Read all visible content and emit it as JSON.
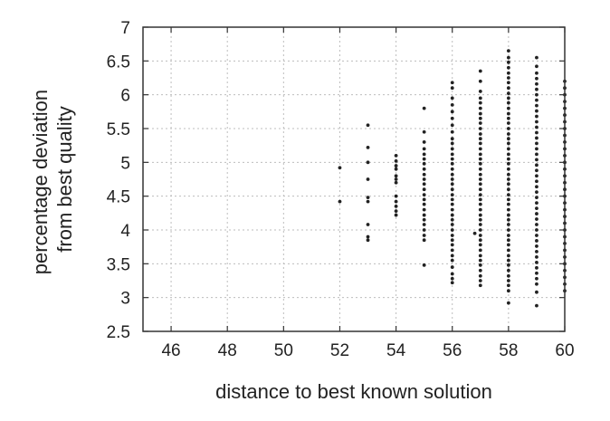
{
  "chart_data": {
    "type": "scatter",
    "title": "",
    "xlabel": "distance to best known solution",
    "ylabel_lines": [
      "percentage deviation",
      "from best quality"
    ],
    "xlim": [
      45,
      60
    ],
    "ylim": [
      2.5,
      7
    ],
    "x_ticks": [
      46,
      48,
      50,
      52,
      54,
      56,
      58,
      60
    ],
    "y_ticks": [
      2.5,
      3,
      3.5,
      4,
      4.5,
      5,
      5.5,
      6,
      6.5,
      7
    ],
    "x_tick_labels": [
      "46",
      "48",
      "50",
      "52",
      "54",
      "56",
      "58",
      "60"
    ],
    "y_tick_labels": [
      "2.5",
      "3",
      "3.5",
      "4",
      "4.5",
      "5",
      "5.5",
      "6",
      "6.5",
      "7"
    ],
    "grid": true,
    "marker_color": "#222222",
    "series": [
      {
        "points": [
          [
            52,
            4.42
          ],
          [
            52,
            4.92
          ],
          [
            53,
            3.85
          ],
          [
            53,
            3.9
          ],
          [
            53,
            4.08
          ],
          [
            53,
            4.42
          ],
          [
            53,
            4.48
          ],
          [
            53,
            4.75
          ],
          [
            53,
            5.0
          ],
          [
            53,
            5.22
          ],
          [
            53,
            5.55
          ],
          [
            54,
            4.22
          ],
          [
            54,
            4.28
          ],
          [
            54,
            4.35
          ],
          [
            54,
            4.42
          ],
          [
            54,
            4.5
          ],
          [
            54,
            4.7
          ],
          [
            54,
            4.75
          ],
          [
            54,
            4.8
          ],
          [
            54,
            4.9
          ],
          [
            54,
            4.95
          ],
          [
            54,
            5.02
          ],
          [
            54,
            5.1
          ],
          [
            55,
            3.48
          ],
          [
            55,
            3.85
          ],
          [
            55,
            3.92
          ],
          [
            55,
            4.0
          ],
          [
            55,
            4.08
          ],
          [
            55,
            4.15
          ],
          [
            55,
            4.22
          ],
          [
            55,
            4.3
          ],
          [
            55,
            4.38
          ],
          [
            55,
            4.45
          ],
          [
            55,
            4.52
          ],
          [
            55,
            4.6
          ],
          [
            55,
            4.68
          ],
          [
            55,
            4.75
          ],
          [
            55,
            4.82
          ],
          [
            55,
            4.9
          ],
          [
            55,
            4.98
          ],
          [
            55,
            5.05
          ],
          [
            55,
            5.12
          ],
          [
            55,
            5.2
          ],
          [
            55,
            5.3
          ],
          [
            55,
            5.45
          ],
          [
            55,
            5.8
          ],
          [
            56,
            3.22
          ],
          [
            56,
            3.28
          ],
          [
            56,
            3.35
          ],
          [
            56,
            3.45
          ],
          [
            56,
            3.55
          ],
          [
            56,
            3.62
          ],
          [
            56,
            3.7
          ],
          [
            56,
            3.78
          ],
          [
            56,
            3.85
          ],
          [
            56,
            3.92
          ],
          [
            56,
            4.0
          ],
          [
            56,
            4.08
          ],
          [
            56,
            4.15
          ],
          [
            56,
            4.22
          ],
          [
            56,
            4.3
          ],
          [
            56,
            4.38
          ],
          [
            56,
            4.45
          ],
          [
            56,
            4.52
          ],
          [
            56,
            4.6
          ],
          [
            56,
            4.68
          ],
          [
            56,
            4.75
          ],
          [
            56,
            4.82
          ],
          [
            56,
            4.9
          ],
          [
            56,
            4.98
          ],
          [
            56,
            5.05
          ],
          [
            56,
            5.12
          ],
          [
            56,
            5.2
          ],
          [
            56,
            5.28
          ],
          [
            56,
            5.35
          ],
          [
            56,
            5.45
          ],
          [
            56,
            5.55
          ],
          [
            56,
            5.65
          ],
          [
            56,
            5.75
          ],
          [
            56,
            5.85
          ],
          [
            56,
            5.95
          ],
          [
            56,
            6.1
          ],
          [
            56,
            6.18
          ],
          [
            56.8,
            3.95
          ],
          [
            57,
            3.18
          ],
          [
            57,
            3.25
          ],
          [
            57,
            3.32
          ],
          [
            57,
            3.4
          ],
          [
            57,
            3.48
          ],
          [
            57,
            3.55
          ],
          [
            57,
            3.62
          ],
          [
            57,
            3.7
          ],
          [
            57,
            3.78
          ],
          [
            57,
            3.85
          ],
          [
            57,
            3.92
          ],
          [
            57,
            4.0
          ],
          [
            57,
            4.08
          ],
          [
            57,
            4.15
          ],
          [
            57,
            4.22
          ],
          [
            57,
            4.3
          ],
          [
            57,
            4.38
          ],
          [
            57,
            4.45
          ],
          [
            57,
            4.52
          ],
          [
            57,
            4.6
          ],
          [
            57,
            4.68
          ],
          [
            57,
            4.75
          ],
          [
            57,
            4.82
          ],
          [
            57,
            4.9
          ],
          [
            57,
            4.98
          ],
          [
            57,
            5.05
          ],
          [
            57,
            5.12
          ],
          [
            57,
            5.2
          ],
          [
            57,
            5.28
          ],
          [
            57,
            5.35
          ],
          [
            57,
            5.42
          ],
          [
            57,
            5.5
          ],
          [
            57,
            5.58
          ],
          [
            57,
            5.65
          ],
          [
            57,
            5.72
          ],
          [
            57,
            5.8
          ],
          [
            57,
            5.88
          ],
          [
            57,
            5.95
          ],
          [
            57,
            6.05
          ],
          [
            57,
            6.2
          ],
          [
            57,
            6.35
          ],
          [
            58,
            2.92
          ],
          [
            58,
            3.1
          ],
          [
            58,
            3.18
          ],
          [
            58,
            3.25
          ],
          [
            58,
            3.32
          ],
          [
            58,
            3.4
          ],
          [
            58,
            3.48
          ],
          [
            58,
            3.55
          ],
          [
            58,
            3.62
          ],
          [
            58,
            3.7
          ],
          [
            58,
            3.78
          ],
          [
            58,
            3.85
          ],
          [
            58,
            3.92
          ],
          [
            58,
            4.0
          ],
          [
            58,
            4.08
          ],
          [
            58,
            4.15
          ],
          [
            58,
            4.22
          ],
          [
            58,
            4.3
          ],
          [
            58,
            4.38
          ],
          [
            58,
            4.45
          ],
          [
            58,
            4.52
          ],
          [
            58,
            4.6
          ],
          [
            58,
            4.68
          ],
          [
            58,
            4.75
          ],
          [
            58,
            4.82
          ],
          [
            58,
            4.9
          ],
          [
            58,
            4.98
          ],
          [
            58,
            5.05
          ],
          [
            58,
            5.12
          ],
          [
            58,
            5.2
          ],
          [
            58,
            5.28
          ],
          [
            58,
            5.35
          ],
          [
            58,
            5.42
          ],
          [
            58,
            5.5
          ],
          [
            58,
            5.58
          ],
          [
            58,
            5.65
          ],
          [
            58,
            5.72
          ],
          [
            58,
            5.8
          ],
          [
            58,
            5.88
          ],
          [
            58,
            5.95
          ],
          [
            58,
            6.02
          ],
          [
            58,
            6.1
          ],
          [
            58,
            6.18
          ],
          [
            58,
            6.25
          ],
          [
            58,
            6.32
          ],
          [
            58,
            6.4
          ],
          [
            58,
            6.48
          ],
          [
            58,
            6.55
          ],
          [
            58,
            6.65
          ],
          [
            59,
            2.88
          ],
          [
            59,
            3.08
          ],
          [
            59,
            3.2
          ],
          [
            59,
            3.28
          ],
          [
            59,
            3.36
          ],
          [
            59,
            3.44
          ],
          [
            59,
            3.52
          ],
          [
            59,
            3.6
          ],
          [
            59,
            3.68
          ],
          [
            59,
            3.76
          ],
          [
            59,
            3.84
          ],
          [
            59,
            3.92
          ],
          [
            59,
            4.0
          ],
          [
            59,
            4.08
          ],
          [
            59,
            4.16
          ],
          [
            59,
            4.24
          ],
          [
            59,
            4.32
          ],
          [
            59,
            4.4
          ],
          [
            59,
            4.48
          ],
          [
            59,
            4.56
          ],
          [
            59,
            4.64
          ],
          [
            59,
            4.72
          ],
          [
            59,
            4.8
          ],
          [
            59,
            4.88
          ],
          [
            59,
            4.96
          ],
          [
            59,
            5.04
          ],
          [
            59,
            5.12
          ],
          [
            59,
            5.2
          ],
          [
            59,
            5.28
          ],
          [
            59,
            5.36
          ],
          [
            59,
            5.44
          ],
          [
            59,
            5.52
          ],
          [
            59,
            5.6
          ],
          [
            59,
            5.68
          ],
          [
            59,
            5.76
          ],
          [
            59,
            5.84
          ],
          [
            59,
            5.92
          ],
          [
            59,
            6.0
          ],
          [
            59,
            6.08
          ],
          [
            59,
            6.16
          ],
          [
            59,
            6.24
          ],
          [
            59,
            6.32
          ],
          [
            59,
            6.42
          ],
          [
            59,
            6.55
          ],
          [
            60,
            3.1
          ],
          [
            60,
            3.2
          ],
          [
            60,
            3.3
          ],
          [
            60,
            3.4
          ],
          [
            60,
            3.5
          ],
          [
            60,
            3.6
          ],
          [
            60,
            3.7
          ],
          [
            60,
            3.8
          ],
          [
            60,
            3.9
          ],
          [
            60,
            4.0
          ],
          [
            60,
            4.1
          ],
          [
            60,
            4.2
          ],
          [
            60,
            4.3
          ],
          [
            60,
            4.4
          ],
          [
            60,
            4.5
          ],
          [
            60,
            4.6
          ],
          [
            60,
            4.7
          ],
          [
            60,
            4.8
          ],
          [
            60,
            4.9
          ],
          [
            60,
            5.0
          ],
          [
            60,
            5.1
          ],
          [
            60,
            5.2
          ],
          [
            60,
            5.3
          ],
          [
            60,
            5.4
          ],
          [
            60,
            5.5
          ],
          [
            60,
            5.6
          ],
          [
            60,
            5.7
          ],
          [
            60,
            5.8
          ],
          [
            60,
            5.9
          ],
          [
            60,
            6.0
          ],
          [
            60,
            6.1
          ],
          [
            60,
            6.2
          ]
        ]
      }
    ]
  }
}
